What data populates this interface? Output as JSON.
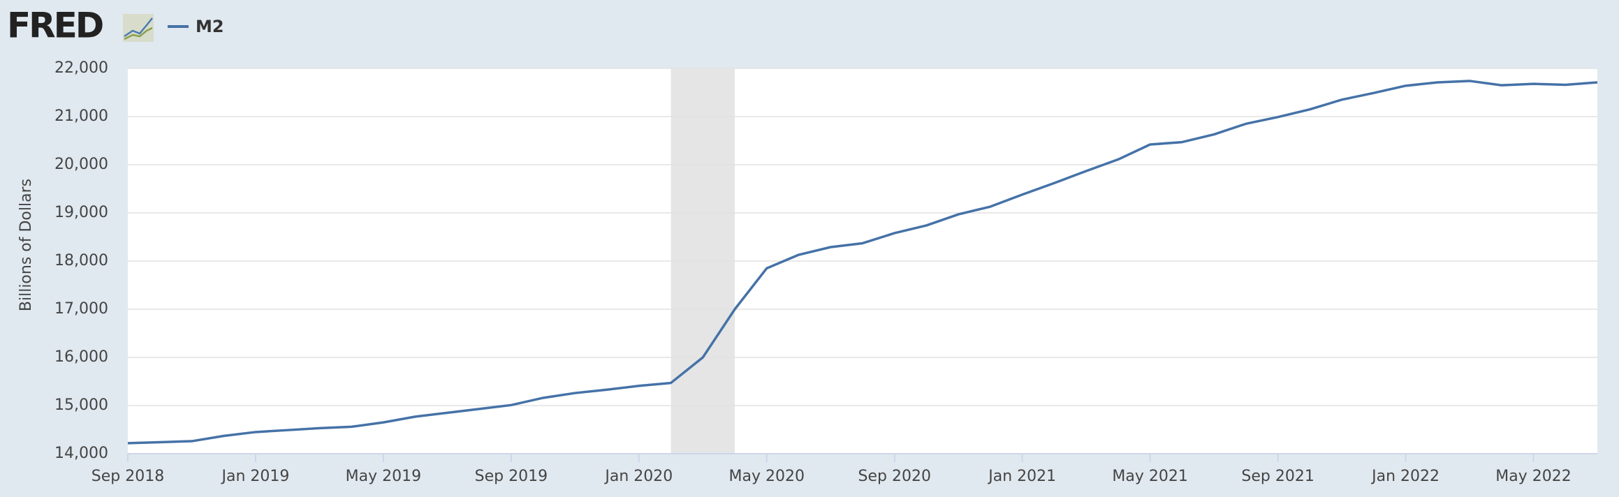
{
  "header": {
    "logo": "FRED"
  },
  "chart_data": {
    "type": "line",
    "y_label": "Billions of Dollars",
    "x": [
      "2018-09",
      "2018-10",
      "2018-11",
      "2018-12",
      "2019-01",
      "2019-02",
      "2019-03",
      "2019-04",
      "2019-05",
      "2019-06",
      "2019-07",
      "2019-08",
      "2019-09",
      "2019-10",
      "2019-11",
      "2019-12",
      "2020-01",
      "2020-02",
      "2020-03",
      "2020-04",
      "2020-05",
      "2020-06",
      "2020-07",
      "2020-08",
      "2020-09",
      "2020-10",
      "2020-11",
      "2020-12",
      "2021-01",
      "2021-02",
      "2021-03",
      "2021-04",
      "2021-05",
      "2021-06",
      "2021-07",
      "2021-08",
      "2021-09",
      "2021-10",
      "2021-11",
      "2021-12",
      "2022-01",
      "2022-02",
      "2022-03",
      "2022-04",
      "2022-05",
      "2022-06",
      "2022-07"
    ],
    "series": [
      {
        "name": "M2",
        "color": "#4572a7",
        "values": [
          14220,
          14240,
          14260,
          14370,
          14450,
          14490,
          14530,
          14560,
          14650,
          14770,
          14850,
          14930,
          15010,
          15160,
          15260,
          15330,
          15410,
          15470,
          16000,
          17000,
          17850,
          18130,
          18290,
          18370,
          18580,
          18740,
          18970,
          19130,
          19380,
          19620,
          19870,
          20110,
          20420,
          20470,
          20630,
          20850,
          20990,
          21150,
          21350,
          21490,
          21640,
          21710,
          21740,
          21650,
          21680,
          21660,
          21710
        ]
      }
    ],
    "recession": [
      "2020-02",
      "2020-04"
    ],
    "xlim": [
      "2018-09",
      "2022-07"
    ],
    "xticks": [
      {
        "value": "2018-09",
        "label": "Sep 2018"
      },
      {
        "value": "2019-01",
        "label": "Jan 2019"
      },
      {
        "value": "2019-05",
        "label": "May 2019"
      },
      {
        "value": "2019-09",
        "label": "Sep 2019"
      },
      {
        "value": "2020-01",
        "label": "Jan 2020"
      },
      {
        "value": "2020-05",
        "label": "May 2020"
      },
      {
        "value": "2020-09",
        "label": "Sep 2020"
      },
      {
        "value": "2021-01",
        "label": "Jan 2021"
      },
      {
        "value": "2021-05",
        "label": "May 2021"
      },
      {
        "value": "2021-09",
        "label": "Sep 2021"
      },
      {
        "value": "2022-01",
        "label": "Jan 2022"
      },
      {
        "value": "2022-05",
        "label": "May 2022"
      }
    ],
    "ylim": [
      14000,
      22000
    ],
    "yticks": [
      {
        "value": 14000,
        "label": "14,000"
      },
      {
        "value": 15000,
        "label": "15,000"
      },
      {
        "value": 16000,
        "label": "16,000"
      },
      {
        "value": 17000,
        "label": "17,000"
      },
      {
        "value": 18000,
        "label": "18,000"
      },
      {
        "value": 19000,
        "label": "19,000"
      },
      {
        "value": 20000,
        "label": "20,000"
      },
      {
        "value": 21000,
        "label": "21,000"
      },
      {
        "value": 22000,
        "label": "22,000"
      }
    ],
    "grid": true
  }
}
